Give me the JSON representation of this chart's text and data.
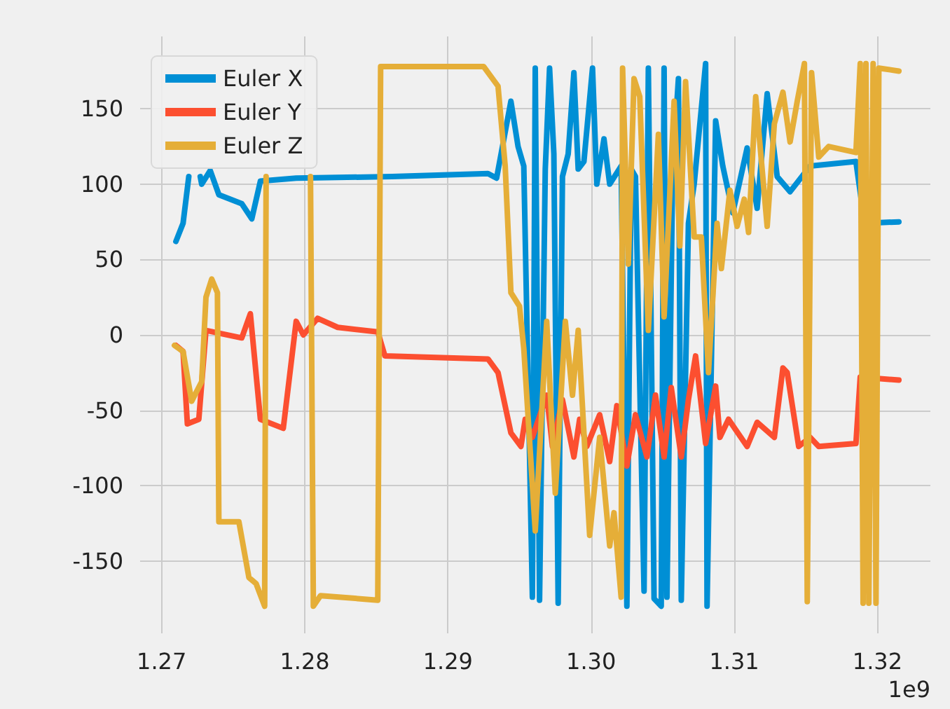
{
  "chart_data": {
    "type": "line",
    "legend": "top left",
    "grid": true,
    "marker": "none",
    "line_style": "solid",
    "xlim": [
      1.2685,
      1.3237
    ],
    "xticks": [
      1.27,
      1.28,
      1.29,
      {
        "value": 1.3,
        "label": "1.30"
      },
      1.31,
      1.32
    ],
    "ylim": [
      -198,
      198
    ],
    "yticks": [
      -150,
      -100,
      -50,
      0,
      50,
      100,
      150
    ],
    "annotations": [
      "1e9"
    ],
    "series": [
      {
        "name": "Euler X",
        "color": "#008fd5",
        "x": [
          1.271,
          1.2715,
          1.2719,
          1.2724,
          1.2727,
          1.2728,
          1.2734,
          1.274,
          1.2756,
          1.2763,
          1.2769,
          1.2794,
          1.2861,
          1.2928,
          1.2934,
          1.2944,
          1.2949,
          1.2953,
          1.2959,
          1.2961,
          1.2964,
          1.2968,
          1.2971,
          1.2974,
          1.2977,
          1.298,
          1.2984,
          1.2988,
          1.2991,
          1.2995,
          1.3001,
          1.3004,
          1.3009,
          1.3013,
          1.3021,
          1.3025,
          1.3028,
          1.3031,
          1.3037,
          1.304,
          1.3044,
          1.3049,
          1.3051,
          1.3053,
          1.3057,
          1.3061,
          1.3063,
          1.3068,
          1.3072,
          1.308,
          1.3081,
          1.3087,
          1.3092,
          1.3099,
          1.3109,
          1.3116,
          1.3123,
          1.313,
          1.3139,
          1.3153,
          1.3185,
          1.3191,
          1.3215
        ],
        "values": [
          62,
          74,
          105,
          null,
          105,
          100,
          109,
          93,
          87,
          77,
          102,
          104,
          105,
          107,
          104,
          155,
          125,
          112,
          -174,
          177,
          -176,
          110,
          177,
          120,
          -178,
          105,
          120,
          174,
          110,
          115,
          177,
          100,
          130,
          100,
          112,
          -180,
          110,
          105,
          -170,
          177,
          -175,
          -180,
          177,
          -174,
          110,
          170,
          -176,
          74,
          100,
          180,
          -180,
          142,
          112,
          81,
          124,
          84,
          160,
          105,
          95,
          112,
          115,
          74,
          75
        ]
      },
      {
        "name": "Euler Y",
        "color": "#fc4f30",
        "x": [
          1.271,
          1.2715,
          1.2718,
          1.2726,
          1.2731,
          1.2756,
          1.2762,
          1.2769,
          1.2785,
          1.2794,
          1.2799,
          1.2809,
          1.2823,
          1.2851,
          1.2856,
          1.2928,
          1.2935,
          1.2944,
          1.2951,
          1.2954,
          1.2959,
          1.2969,
          1.2973,
          1.298,
          1.2988,
          1.2992,
          1.2997,
          1.3006,
          1.3013,
          1.3018,
          1.3025,
          1.3031,
          1.3039,
          1.3045,
          1.3051,
          1.3056,
          1.3063,
          1.3068,
          1.3073,
          1.308,
          1.3087,
          1.309,
          1.3096,
          1.3109,
          1.3116,
          1.3128,
          1.3134,
          1.3137,
          1.3145,
          1.3153,
          1.3159,
          1.3185,
          1.3188,
          1.3215
        ],
        "values": [
          -7,
          -11,
          -59,
          -56,
          3,
          -2,
          14,
          -56,
          -62,
          9,
          0,
          11,
          5,
          2,
          -14,
          -16,
          -25,
          -65,
          -74,
          -56,
          -68,
          -40,
          -74,
          -43,
          -81,
          -56,
          -74,
          -53,
          -84,
          -47,
          -87,
          -53,
          -81,
          -40,
          -81,
          -35,
          -81,
          -43,
          -14,
          -72,
          -34,
          -68,
          -56,
          -74,
          -58,
          -68,
          -22,
          -25,
          -74,
          -68,
          -74,
          -72,
          -28,
          -30
        ]
      },
      {
        "name": "Euler Z",
        "color": "#e5ae38",
        "x": [
          1.2709,
          1.2715,
          1.2721,
          1.2728,
          1.2731,
          1.2735,
          1.2739,
          1.274,
          1.2754,
          1.2761,
          1.2766,
          1.2772,
          1.2773,
          1.2785,
          1.2804,
          1.2806,
          1.2811,
          1.2851,
          1.2853,
          1.2925,
          1.2935,
          1.294,
          1.2944,
          1.295,
          1.2953,
          1.2961,
          1.2969,
          1.2975,
          1.2982,
          1.2987,
          1.2991,
          1.2999,
          1.3006,
          1.3013,
          1.3016,
          1.3021,
          1.3022,
          1.3026,
          1.303,
          1.3034,
          1.304,
          1.3047,
          1.3051,
          1.3058,
          1.3062,
          1.3066,
          1.3072,
          1.3077,
          1.3082,
          1.3088,
          1.3091,
          1.3097,
          1.3102,
          1.3107,
          1.311,
          1.3115,
          1.3123,
          1.3128,
          1.3134,
          1.3139,
          1.3144,
          1.3149,
          1.3151,
          1.3154,
          1.3159,
          1.3166,
          1.3185,
          1.3188,
          1.319,
          1.3192,
          1.3194,
          1.3197,
          1.3199,
          1.3201,
          1.3215
        ],
        "values": [
          -7,
          -11,
          -44,
          -31,
          25,
          37,
          28,
          -124,
          -124,
          -161,
          -165,
          -180,
          105,
          null,
          105,
          -180,
          -173,
          -176,
          178,
          178,
          165,
          112,
          28,
          19,
          -9,
          -130,
          9,
          -105,
          9,
          -40,
          3,
          -133,
          -68,
          -140,
          -118,
          -174,
          177,
          47,
          170,
          158,
          3,
          133,
          12,
          155,
          59,
          168,
          65,
          65,
          -25,
          74,
          44,
          96,
          72,
          90,
          68,
          158,
          72,
          140,
          161,
          128,
          155,
          180,
          -177,
          174,
          118,
          125,
          121,
          180,
          -178,
          180,
          -178,
          180,
          -178,
          177,
          175
        ]
      }
    ]
  }
}
